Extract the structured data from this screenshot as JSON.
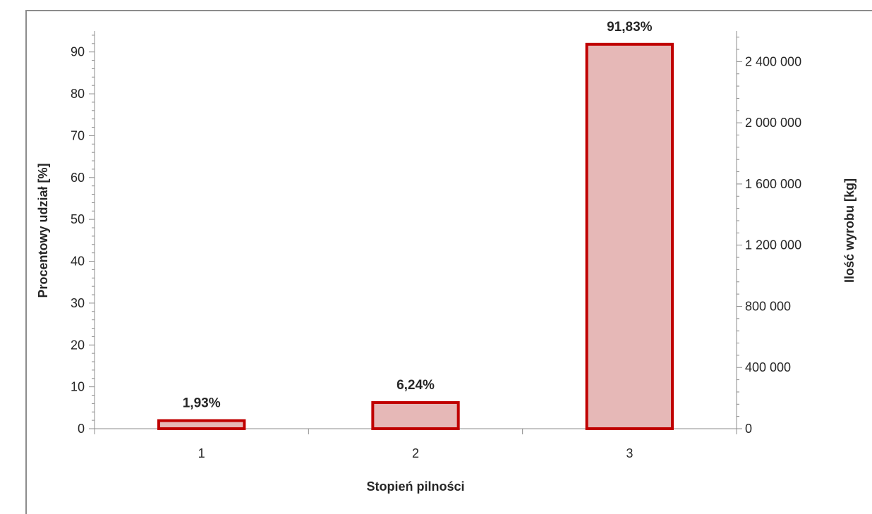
{
  "chart_data": {
    "type": "bar",
    "categories": [
      "1",
      "2",
      "3"
    ],
    "series": [
      {
        "values": [
          1.93,
          6.24,
          91.83
        ],
        "data_labels": [
          "1,93%",
          "6,24%",
          "91,83%"
        ],
        "fill_color": "#e6b8b7",
        "stroke_color": "#c00000"
      }
    ],
    "xlabel": "Stopień pilności",
    "ylabel": "Procentowy udział [%]",
    "y2label": "Ilość wyrobu [kg]",
    "ylim": [
      0,
      95
    ],
    "yticks": [
      0,
      10,
      20,
      30,
      40,
      50,
      60,
      70,
      80,
      90
    ],
    "y2lim": [
      0,
      2600000
    ],
    "y2ticks": [
      0,
      400000,
      800000,
      1200000,
      1600000,
      2000000,
      2400000
    ],
    "y2tick_labels": [
      "0",
      "400 000",
      "800 000",
      "1 200 000",
      "1 600 000",
      "2 000 000",
      "2 400 000"
    ],
    "grid": false,
    "legend": "none"
  }
}
